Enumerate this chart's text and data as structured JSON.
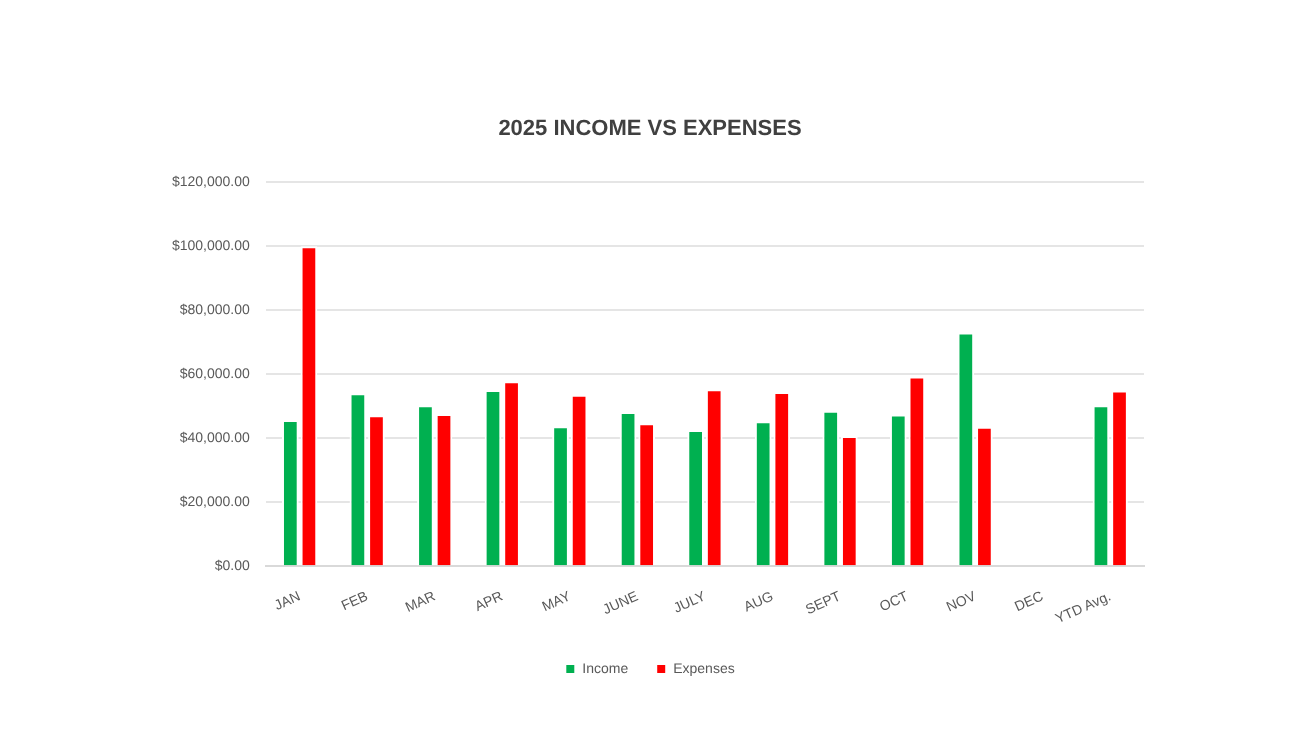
{
  "chart_data": {
    "type": "bar",
    "title": "2025 INCOME VS EXPENSES",
    "categories": [
      "JAN",
      "FEB",
      "MAR",
      "APR",
      "MAY",
      "JUNE",
      "JULY",
      "AUG",
      "SEPT",
      "OCT",
      "NOV",
      "DEC",
      "YTD Avg."
    ],
    "series": [
      {
        "name": "Income",
        "color": "#00b050",
        "values": [
          45700,
          54100,
          50300,
          55100,
          43800,
          48200,
          42600,
          45300,
          48600,
          47400,
          73100,
          null,
          50300
        ]
      },
      {
        "name": "Expenses",
        "color": "#ff0000",
        "values": [
          100000,
          47200,
          47600,
          57800,
          53600,
          44700,
          55300,
          54500,
          40700,
          59300,
          43600,
          null,
          54900
        ]
      }
    ],
    "ylim": [
      0,
      120000
    ],
    "yticks": [
      {
        "value": 0,
        "label": "$0.00"
      },
      {
        "value": 20000,
        "label": "$20,000.00"
      },
      {
        "value": 40000,
        "label": "$40,000.00"
      },
      {
        "value": 60000,
        "label": "$60,000.00"
      },
      {
        "value": 80000,
        "label": "$80,000.00"
      },
      {
        "value": 100000,
        "label": "$100,000.00"
      },
      {
        "value": 120000,
        "label": "$120,000.00"
      }
    ],
    "grid": "y",
    "legend": "bottom"
  }
}
